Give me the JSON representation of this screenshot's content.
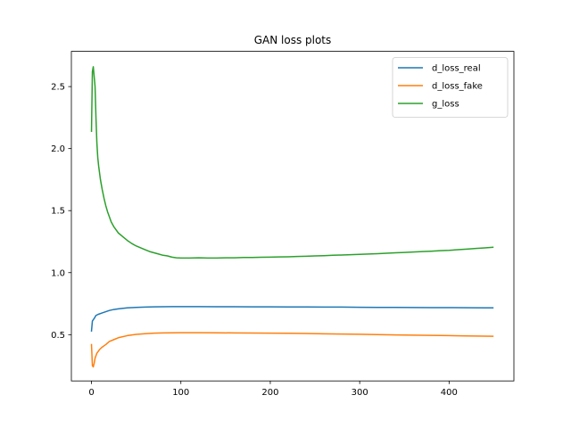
{
  "chart_data": {
    "type": "line",
    "title": "GAN loss plots",
    "xlabel": "",
    "ylabel": "",
    "xlim": [
      -22.5,
      472.5
    ],
    "ylim": [
      0.127,
      2.784
    ],
    "x_ticks": [
      0,
      100,
      200,
      300,
      400
    ],
    "y_ticks": [
      0.5,
      1.0,
      1.5,
      2.0,
      2.5
    ],
    "x_tick_labels": [
      "0",
      "100",
      "200",
      "300",
      "400"
    ],
    "y_tick_labels": [
      "0.5",
      "1.0",
      "1.5",
      "2.0",
      "2.5"
    ],
    "grid": false,
    "legend_position": "top-right",
    "series": [
      {
        "name": "d_loss_real",
        "color": "#1f77b4",
        "points": [
          [
            0,
            0.53
          ],
          [
            1,
            0.61
          ],
          [
            2,
            0.62
          ],
          [
            3,
            0.63
          ],
          [
            5,
            0.655
          ],
          [
            8,
            0.665
          ],
          [
            12,
            0.675
          ],
          [
            16,
            0.685
          ],
          [
            20,
            0.695
          ],
          [
            25,
            0.703
          ],
          [
            30,
            0.708
          ],
          [
            40,
            0.716
          ],
          [
            50,
            0.72
          ],
          [
            60,
            0.722
          ],
          [
            70,
            0.724
          ],
          [
            80,
            0.725
          ],
          [
            90,
            0.726
          ],
          [
            100,
            0.726
          ],
          [
            120,
            0.726
          ],
          [
            140,
            0.725
          ],
          [
            160,
            0.725
          ],
          [
            180,
            0.724
          ],
          [
            200,
            0.724
          ],
          [
            220,
            0.723
          ],
          [
            240,
            0.723
          ],
          [
            260,
            0.722
          ],
          [
            280,
            0.722
          ],
          [
            300,
            0.721
          ],
          [
            320,
            0.72
          ],
          [
            340,
            0.72
          ],
          [
            360,
            0.719
          ],
          [
            380,
            0.718
          ],
          [
            400,
            0.718
          ],
          [
            420,
            0.717
          ],
          [
            440,
            0.716
          ],
          [
            449,
            0.716
          ]
        ]
      },
      {
        "name": "d_loss_fake",
        "color": "#ff7f0e",
        "points": [
          [
            0,
            0.42
          ],
          [
            1,
            0.25
          ],
          [
            2,
            0.24
          ],
          [
            3,
            0.27
          ],
          [
            4,
            0.31
          ],
          [
            6,
            0.35
          ],
          [
            9,
            0.38
          ],
          [
            12,
            0.4
          ],
          [
            16,
            0.42
          ],
          [
            20,
            0.445
          ],
          [
            25,
            0.46
          ],
          [
            30,
            0.475
          ],
          [
            40,
            0.492
          ],
          [
            50,
            0.502
          ],
          [
            60,
            0.508
          ],
          [
            70,
            0.512
          ],
          [
            80,
            0.514
          ],
          [
            90,
            0.515
          ],
          [
            100,
            0.516
          ],
          [
            120,
            0.516
          ],
          [
            140,
            0.515
          ],
          [
            160,
            0.514
          ],
          [
            180,
            0.513
          ],
          [
            200,
            0.512
          ],
          [
            220,
            0.511
          ],
          [
            240,
            0.509
          ],
          [
            260,
            0.507
          ],
          [
            280,
            0.505
          ],
          [
            300,
            0.503
          ],
          [
            320,
            0.5
          ],
          [
            340,
            0.498
          ],
          [
            360,
            0.496
          ],
          [
            380,
            0.494
          ],
          [
            400,
            0.492
          ],
          [
            420,
            0.49
          ],
          [
            440,
            0.488
          ],
          [
            449,
            0.487
          ]
        ]
      },
      {
        "name": "g_loss",
        "color": "#2ca02c",
        "points": [
          [
            0,
            2.14
          ],
          [
            1,
            2.62
          ],
          [
            2,
            2.66
          ],
          [
            3,
            2.58
          ],
          [
            4,
            2.5
          ],
          [
            5,
            2.25
          ],
          [
            6,
            2.05
          ],
          [
            7,
            1.93
          ],
          [
            8,
            1.86
          ],
          [
            10,
            1.75
          ],
          [
            12,
            1.67
          ],
          [
            14,
            1.6
          ],
          [
            16,
            1.54
          ],
          [
            18,
            1.49
          ],
          [
            20,
            1.45
          ],
          [
            22,
            1.41
          ],
          [
            25,
            1.37
          ],
          [
            28,
            1.34
          ],
          [
            30,
            1.32
          ],
          [
            35,
            1.29
          ],
          [
            40,
            1.26
          ],
          [
            45,
            1.235
          ],
          [
            50,
            1.215
          ],
          [
            55,
            1.2
          ],
          [
            60,
            1.185
          ],
          [
            65,
            1.17
          ],
          [
            70,
            1.16
          ],
          [
            75,
            1.15
          ],
          [
            80,
            1.14
          ],
          [
            85,
            1.135
          ],
          [
            90,
            1.125
          ],
          [
            95,
            1.12
          ],
          [
            100,
            1.118
          ],
          [
            110,
            1.118
          ],
          [
            120,
            1.12
          ],
          [
            130,
            1.118
          ],
          [
            140,
            1.118
          ],
          [
            150,
            1.12
          ],
          [
            160,
            1.12
          ],
          [
            170,
            1.122
          ],
          [
            180,
            1.122
          ],
          [
            190,
            1.124
          ],
          [
            200,
            1.125
          ],
          [
            210,
            1.127
          ],
          [
            220,
            1.128
          ],
          [
            230,
            1.13
          ],
          [
            240,
            1.132
          ],
          [
            250,
            1.135
          ],
          [
            260,
            1.137
          ],
          [
            270,
            1.14
          ],
          [
            280,
            1.142
          ],
          [
            290,
            1.145
          ],
          [
            300,
            1.147
          ],
          [
            310,
            1.15
          ],
          [
            320,
            1.153
          ],
          [
            330,
            1.156
          ],
          [
            340,
            1.16
          ],
          [
            350,
            1.163
          ],
          [
            360,
            1.166
          ],
          [
            370,
            1.17
          ],
          [
            380,
            1.173
          ],
          [
            390,
            1.177
          ],
          [
            400,
            1.18
          ],
          [
            410,
            1.185
          ],
          [
            420,
            1.19
          ],
          [
            430,
            1.195
          ],
          [
            440,
            1.2
          ],
          [
            449,
            1.205
          ]
        ]
      }
    ]
  }
}
